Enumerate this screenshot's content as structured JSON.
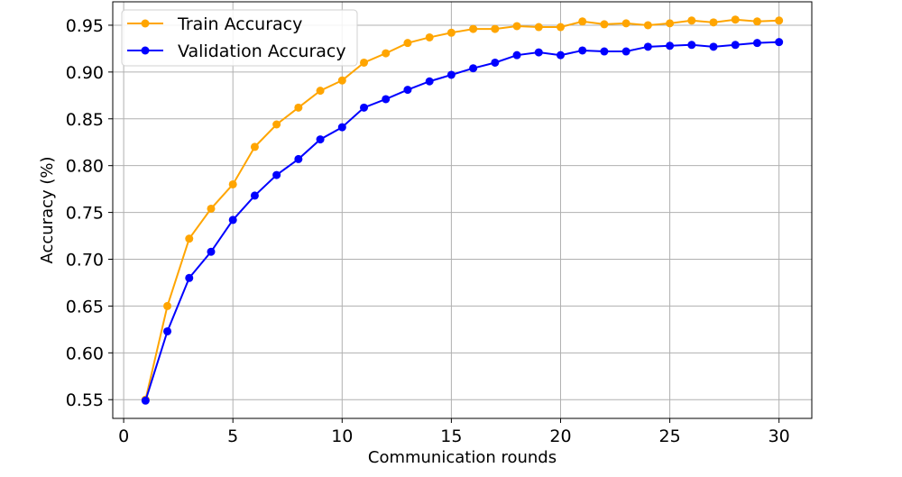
{
  "chart_data": {
    "type": "line",
    "title": "",
    "xlabel": "Communication rounds",
    "ylabel": "Accuracy (%)",
    "xlim": [
      -0.5,
      31.5
    ],
    "ylim": [
      0.53,
      0.975
    ],
    "xticks": [
      0,
      5,
      10,
      15,
      20,
      25,
      30
    ],
    "xtick_labels": [
      "0",
      "5",
      "10",
      "15",
      "20",
      "25",
      "30"
    ],
    "yticks": [
      0.55,
      0.6,
      0.65,
      0.7,
      0.75,
      0.8,
      0.85,
      0.9,
      0.95
    ],
    "ytick_labels": [
      "0.55",
      "0.60",
      "0.65",
      "0.70",
      "0.75",
      "0.80",
      "0.85",
      "0.90",
      "0.95"
    ],
    "grid": true,
    "legend_position": "top-left",
    "x": [
      1,
      2,
      3,
      4,
      5,
      6,
      7,
      8,
      9,
      10,
      11,
      12,
      13,
      14,
      15,
      16,
      17,
      18,
      19,
      20,
      21,
      22,
      23,
      24,
      25,
      26,
      27,
      28,
      29,
      30
    ],
    "series": [
      {
        "name": "Train Accuracy",
        "color": "#FFA500",
        "values": [
          0.55,
          0.65,
          0.722,
          0.754,
          0.78,
          0.82,
          0.844,
          0.862,
          0.88,
          0.891,
          0.91,
          0.92,
          0.931,
          0.937,
          0.942,
          0.946,
          0.946,
          0.949,
          0.948,
          0.948,
          0.954,
          0.951,
          0.952,
          0.95,
          0.952,
          0.955,
          0.953,
          0.956,
          0.954,
          0.955
        ]
      },
      {
        "name": "Validation Accuracy",
        "color": "#0000FF",
        "values": [
          0.549,
          0.623,
          0.68,
          0.708,
          0.742,
          0.768,
          0.79,
          0.807,
          0.828,
          0.841,
          0.862,
          0.871,
          0.881,
          0.89,
          0.897,
          0.904,
          0.91,
          0.918,
          0.921,
          0.918,
          0.923,
          0.922,
          0.922,
          0.927,
          0.928,
          0.929,
          0.927,
          0.929,
          0.931,
          0.932
        ]
      }
    ]
  }
}
